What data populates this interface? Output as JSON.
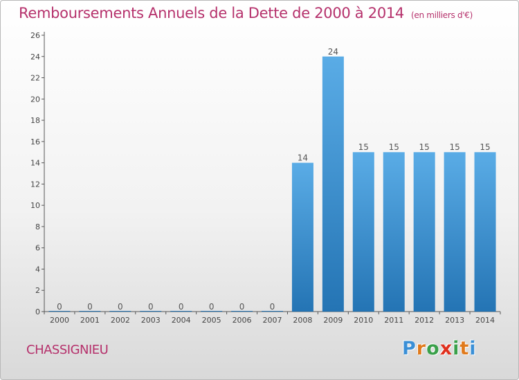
{
  "title": "Remboursements Annuels de la Dette de 2000 à 2014",
  "subtitle": "(en milliers d'€)",
  "town": "CHASSIGNIEU",
  "logo": {
    "letters": [
      "P",
      "r",
      "o",
      "x",
      "i",
      "t",
      "i"
    ],
    "colors": [
      "#3a8fd6",
      "#e07a1c",
      "#3aa04a",
      "#e0301e",
      "#3aa04a",
      "#e07a1c",
      "#3a8fd6"
    ]
  },
  "chart_data": {
    "type": "bar",
    "categories": [
      "2000",
      "2001",
      "2002",
      "2003",
      "2004",
      "2005",
      "2006",
      "2007",
      "2008",
      "2009",
      "2010",
      "2011",
      "2012",
      "2013",
      "2014"
    ],
    "values": [
      0,
      0,
      0,
      0,
      0,
      0,
      0,
      0,
      14,
      24,
      15,
      15,
      15,
      15,
      15
    ],
    "value_labels": [
      "0",
      "0",
      "0",
      "0",
      "0",
      "0",
      "0",
      "0",
      "14",
      "24",
      "15",
      "15",
      "15",
      "15",
      "15"
    ],
    "yticks": [
      0,
      2,
      4,
      6,
      8,
      10,
      12,
      14,
      16,
      18,
      20,
      22,
      24,
      26
    ],
    "ylim": [
      0,
      26
    ],
    "bar_color_top": "#5aace6",
    "bar_color_bottom": "#2474b4",
    "grid": false,
    "legend": "none"
  }
}
